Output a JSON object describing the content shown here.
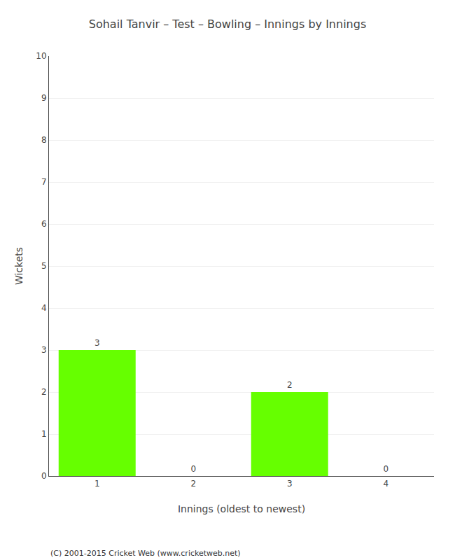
{
  "chart_data": {
    "type": "bar",
    "title": "Sohail Tanvir – Test – Bowling – Innings by Innings",
    "xlabel": "Innings (oldest to newest)",
    "ylabel": "Wickets",
    "categories": [
      "1",
      "2",
      "3",
      "4"
    ],
    "values": [
      3,
      0,
      2,
      0
    ],
    "color": "#66ff00",
    "ylim": [
      0,
      10
    ],
    "yticks": [
      0,
      1,
      2,
      3,
      4,
      5,
      6,
      7,
      8,
      9,
      10
    ],
    "grid": true,
    "data_labels": true,
    "annotations": [
      "(C) 2001-2015 Cricket Web (www.cricketweb.net)"
    ]
  }
}
